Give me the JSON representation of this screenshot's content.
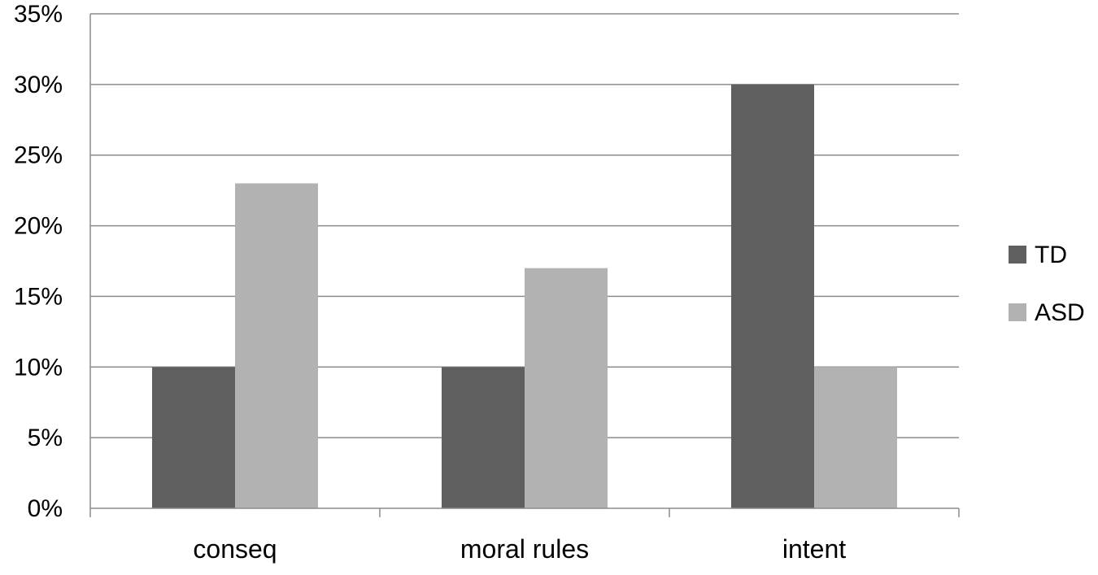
{
  "chart_data": {
    "type": "bar",
    "categories": [
      "conseq",
      "moral rules",
      "intent"
    ],
    "series": [
      {
        "name": "TD",
        "values": [
          10,
          10,
          30
        ],
        "color": "#5f5f5f"
      },
      {
        "name": "ASD",
        "values": [
          23,
          17,
          10
        ],
        "color": "#b2b2b2"
      }
    ],
    "y_ticks": [
      "0%",
      "5%",
      "10%",
      "15%",
      "20%",
      "25%",
      "30%",
      "35%"
    ],
    "ylim": [
      0,
      35
    ],
    "y_unit": "percent",
    "grid": true,
    "legend_position": "right",
    "gridline_color": "#8c8c8c"
  }
}
